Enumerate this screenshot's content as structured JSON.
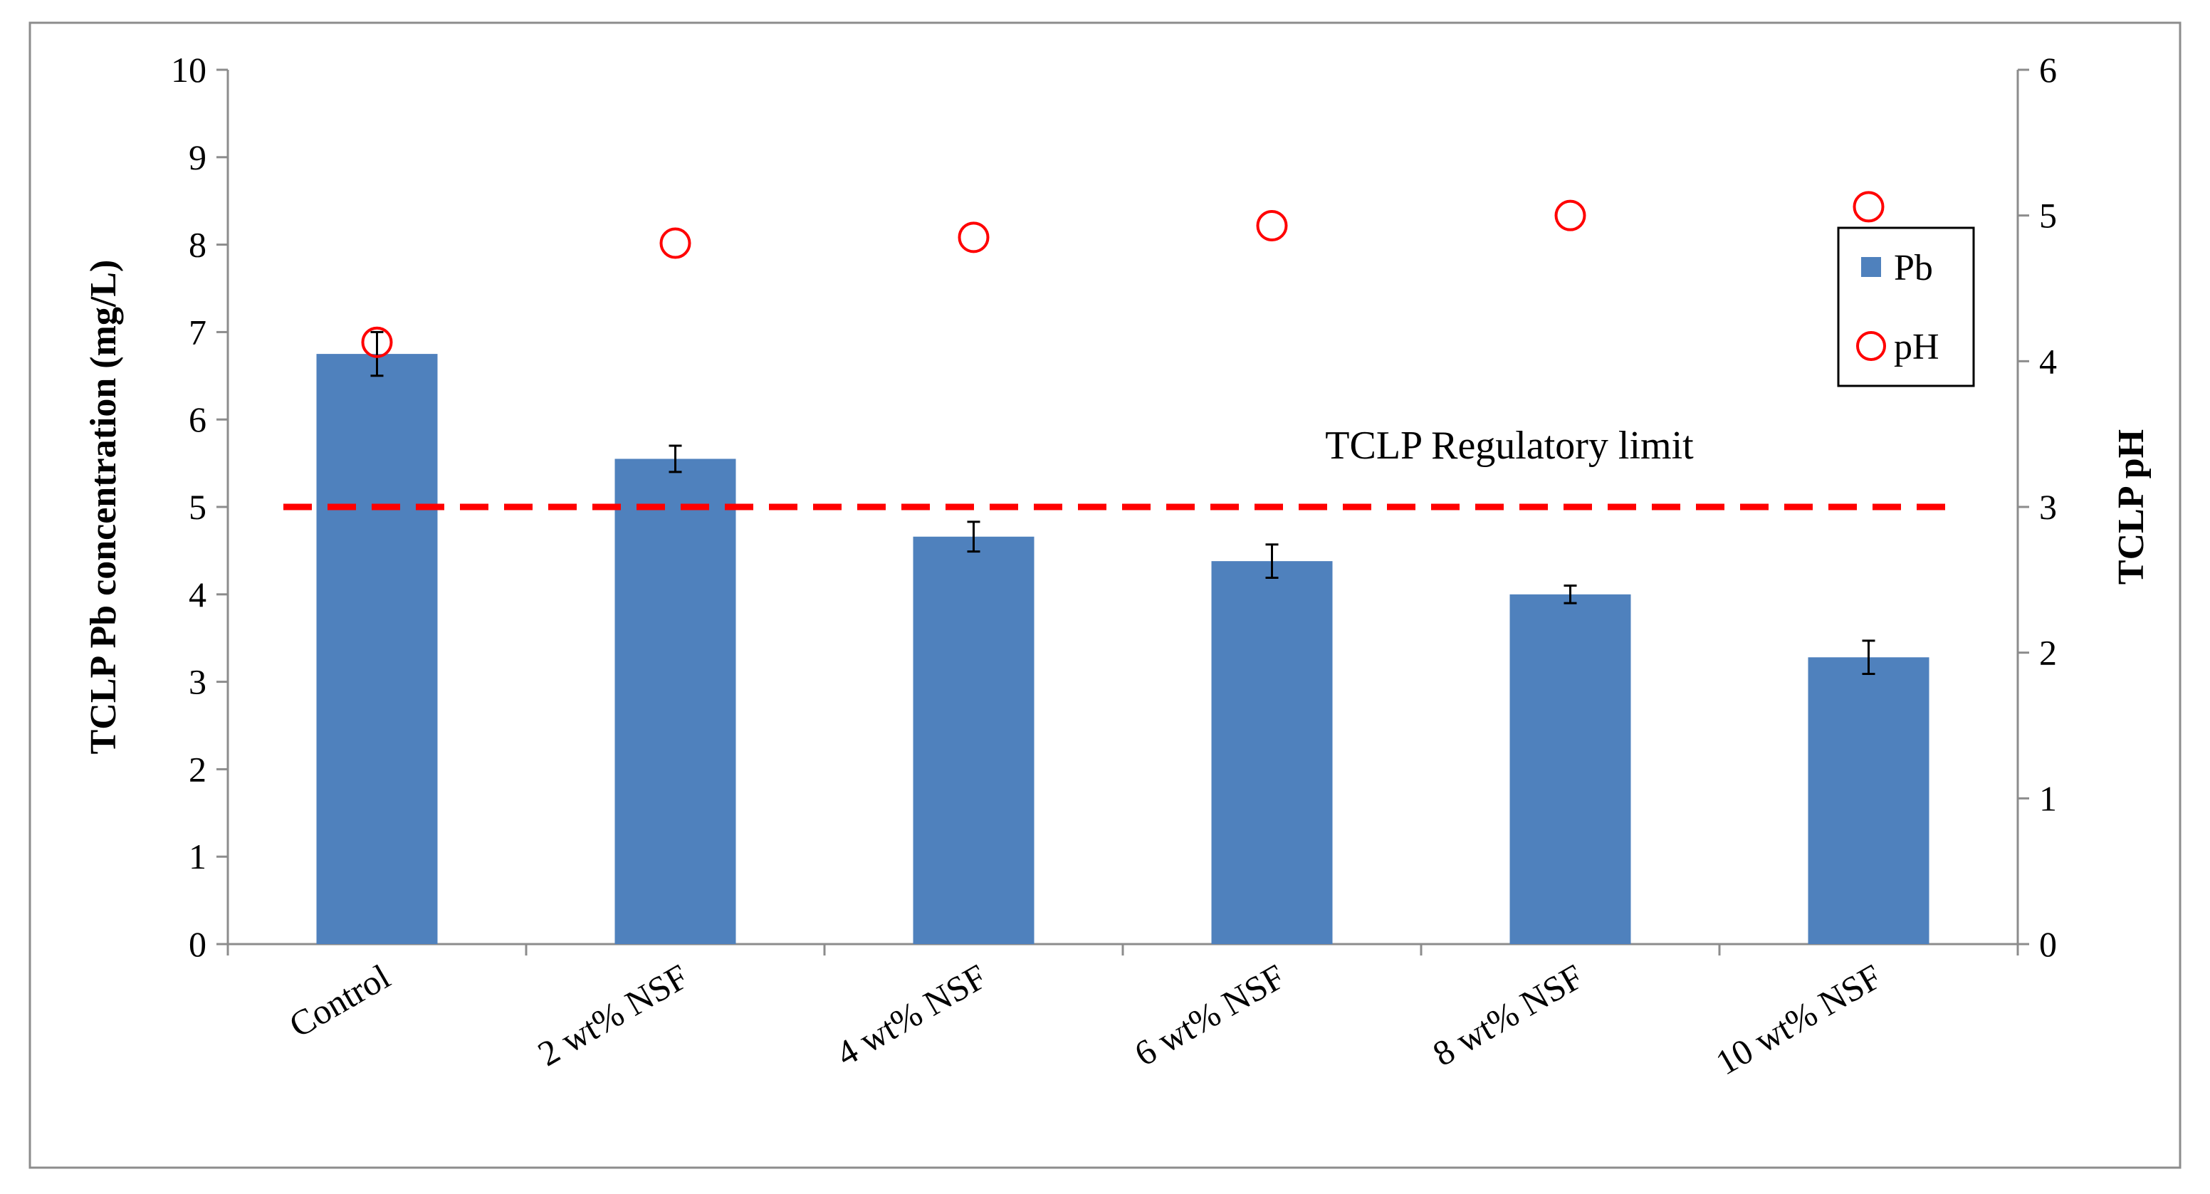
{
  "chart_data": {
    "type": "bar",
    "categories": [
      "Control",
      "2 wt% NSF",
      "4 wt% NSF",
      "6 wt% NSF",
      "8 wt% NSF",
      "10 wt% NSF"
    ],
    "series": [
      {
        "name": "Pb",
        "kind": "bar",
        "axis": "left",
        "color": "#4f81bd",
        "values": [
          6.75,
          5.55,
          4.66,
          4.38,
          4.0,
          3.28
        ],
        "error": [
          0.25,
          0.15,
          0.17,
          0.19,
          0.1,
          0.19
        ]
      },
      {
        "name": "pH",
        "kind": "scatter",
        "axis": "right",
        "color": "#ff0000",
        "values": [
          4.13,
          4.81,
          4.85,
          4.93,
          5.0,
          5.06
        ]
      }
    ],
    "ylabel": "TCLP Pb concentration (mg/L)",
    "y2label": "TCLP pH",
    "xlabel": "",
    "ylim": [
      0,
      10
    ],
    "y2lim": [
      0,
      6
    ],
    "yticks": [
      "0",
      "1",
      "2",
      "3",
      "4",
      "5",
      "6",
      "7",
      "8",
      "9",
      "10"
    ],
    "y2ticks": [
      "0",
      "1",
      "2",
      "3",
      "4",
      "5",
      "6"
    ],
    "reference_line": {
      "value": 5,
      "label": "TCLP Regulatory limit",
      "color": "#ff0000",
      "style": "dashed"
    },
    "legend": {
      "position": "top-right",
      "entries": [
        "Pb",
        "pH"
      ]
    },
    "grid": false
  }
}
